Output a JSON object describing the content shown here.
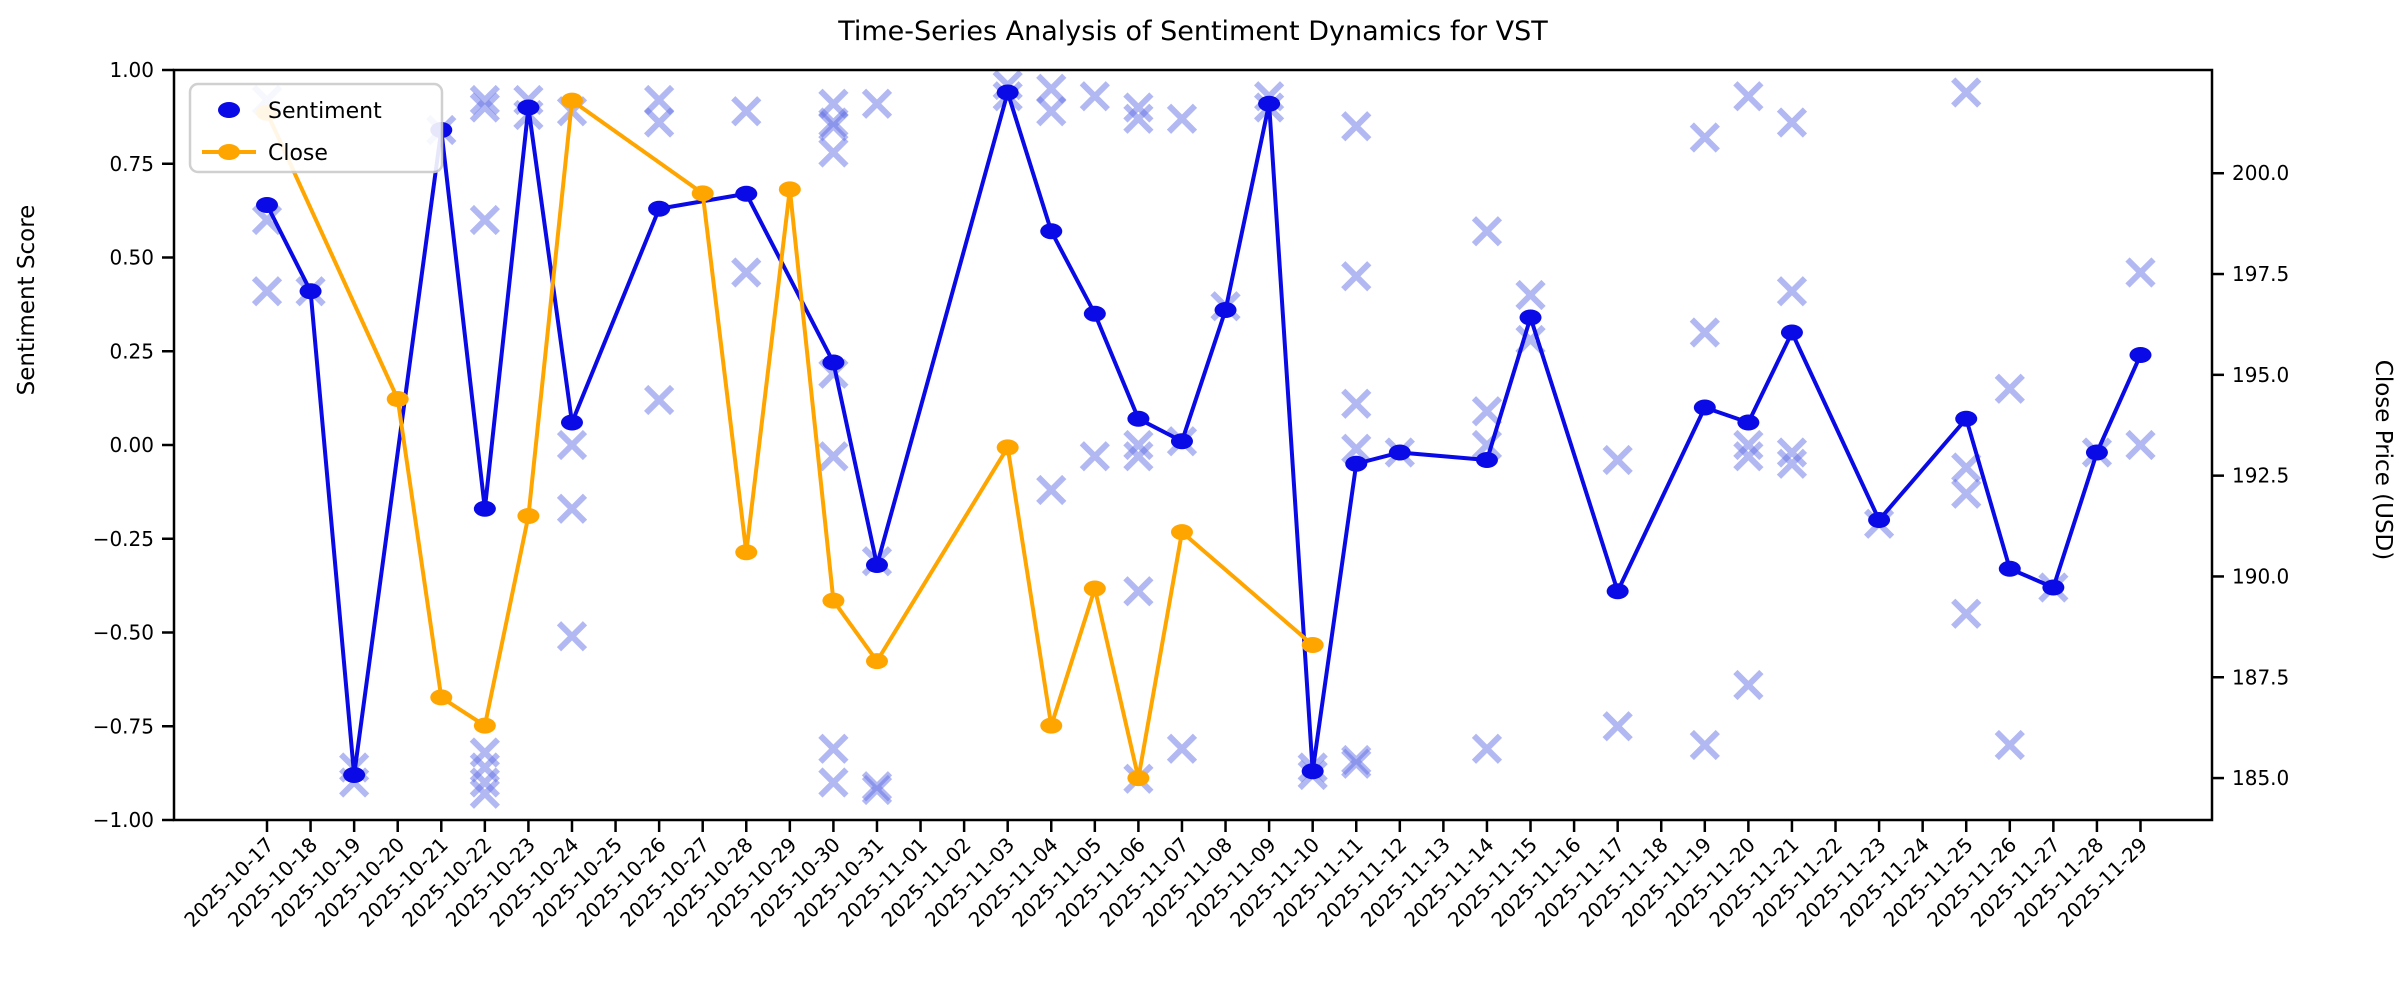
{
  "chart_data": {
    "type": "line",
    "title": "Time-Series Analysis of Sentiment Dynamics for VST",
    "ylabel_left": "Sentiment Score",
    "ylabel_right": "Close Price (USD)",
    "xlabel": "",
    "grid": false,
    "legend_position": "upper-left",
    "legend": [
      {
        "label": "Sentiment",
        "marker": "dot",
        "color": "#0a0ae6"
      },
      {
        "label": "Close",
        "marker": "line-dot",
        "color": "#ffa500"
      }
    ],
    "colors": {
      "sentiment_line": "#0a0ae6",
      "close_line": "#ffa500",
      "scatter_marks": "#6673e6",
      "spine": "#000000",
      "legend_border": "#cccccc"
    },
    "ylim_left": [
      -1.0,
      1.0
    ],
    "yticks_left": [
      "1.00",
      "0.75",
      "0.50",
      "0.25",
      "0.00",
      "−0.25",
      "−0.50",
      "−0.75",
      "−1.00"
    ],
    "yticks_left_values": [
      1.0,
      0.75,
      0.5,
      0.25,
      0.0,
      -0.25,
      -0.5,
      -0.75,
      -1.0
    ],
    "ylim_right": [
      183.96,
      202.56
    ],
    "yticks_right": [
      "200.0",
      "197.5",
      "195.0",
      "192.5",
      "190.0",
      "187.5",
      "185.0"
    ],
    "yticks_right_values": [
      200.0,
      197.5,
      195.0,
      192.5,
      190.0,
      187.5,
      185.0
    ],
    "categories": [
      "2025-10-17",
      "2025-10-18",
      "2025-10-19",
      "2025-10-20",
      "2025-10-21",
      "2025-10-22",
      "2025-10-23",
      "2025-10-24",
      "2025-10-25",
      "2025-10-26",
      "2025-10-27",
      "2025-10-28",
      "2025-10-29",
      "2025-10-30",
      "2025-10-31",
      "2025-11-01",
      "2025-11-02",
      "2025-11-03",
      "2025-11-04",
      "2025-11-05",
      "2025-11-06",
      "2025-11-07",
      "2025-11-08",
      "2025-11-09",
      "2025-11-10",
      "2025-11-11",
      "2025-11-12",
      "2025-11-13",
      "2025-11-14",
      "2025-11-15",
      "2025-11-16",
      "2025-11-17",
      "2025-11-18",
      "2025-11-19",
      "2025-11-20",
      "2025-11-21",
      "2025-11-22",
      "2025-11-23",
      "2025-11-24",
      "2025-11-25",
      "2025-11-26",
      "2025-11-27",
      "2025-11-28",
      "2025-11-29"
    ],
    "series": [
      {
        "name": "Sentiment",
        "axis": "left",
        "points": [
          {
            "x": "2025-10-17",
            "y": 0.64
          },
          {
            "x": "2025-10-18",
            "y": 0.41
          },
          {
            "x": "2025-10-19",
            "y": -0.88
          },
          {
            "x": "2025-10-21",
            "y": 0.84
          },
          {
            "x": "2025-10-22",
            "y": -0.17
          },
          {
            "x": "2025-10-23",
            "y": 0.9
          },
          {
            "x": "2025-10-24",
            "y": 0.06
          },
          {
            "x": "2025-10-26",
            "y": 0.63
          },
          {
            "x": "2025-10-28",
            "y": 0.67
          },
          {
            "x": "2025-10-30",
            "y": 0.22
          },
          {
            "x": "2025-10-31",
            "y": -0.32
          },
          {
            "x": "2025-11-03",
            "y": 0.94
          },
          {
            "x": "2025-11-04",
            "y": 0.57
          },
          {
            "x": "2025-11-05",
            "y": 0.35
          },
          {
            "x": "2025-11-06",
            "y": 0.07
          },
          {
            "x": "2025-11-07",
            "y": 0.01
          },
          {
            "x": "2025-11-08",
            "y": 0.36
          },
          {
            "x": "2025-11-09",
            "y": 0.91
          },
          {
            "x": "2025-11-10",
            "y": -0.87
          },
          {
            "x": "2025-11-11",
            "y": -0.05
          },
          {
            "x": "2025-11-12",
            "y": -0.02
          },
          {
            "x": "2025-11-14",
            "y": -0.04
          },
          {
            "x": "2025-11-15",
            "y": 0.34
          },
          {
            "x": "2025-11-17",
            "y": -0.39
          },
          {
            "x": "2025-11-19",
            "y": 0.1
          },
          {
            "x": "2025-11-20",
            "y": 0.06
          },
          {
            "x": "2025-11-21",
            "y": 0.3
          },
          {
            "x": "2025-11-23",
            "y": -0.2
          },
          {
            "x": "2025-11-25",
            "y": 0.07
          },
          {
            "x": "2025-11-26",
            "y": -0.33
          },
          {
            "x": "2025-11-27",
            "y": -0.38
          },
          {
            "x": "2025-11-28",
            "y": -0.02
          },
          {
            "x": "2025-11-29",
            "y": 0.24
          }
        ]
      },
      {
        "name": "Close",
        "axis": "right",
        "points": [
          {
            "x": "2025-10-17",
            "y": 201.5
          },
          {
            "x": "2025-10-20",
            "y": 194.4
          },
          {
            "x": "2025-10-21",
            "y": 187.0
          },
          {
            "x": "2025-10-22",
            "y": 186.3
          },
          {
            "x": "2025-10-23",
            "y": 191.5
          },
          {
            "x": "2025-10-24",
            "y": 201.8
          },
          {
            "x": "2025-10-27",
            "y": 199.5
          },
          {
            "x": "2025-10-28",
            "y": 190.6
          },
          {
            "x": "2025-10-29",
            "y": 199.6
          },
          {
            "x": "2025-10-30",
            "y": 189.4
          },
          {
            "x": "2025-10-31",
            "y": 187.9
          },
          {
            "x": "2025-11-03",
            "y": 193.2
          },
          {
            "x": "2025-11-04",
            "y": 186.3
          },
          {
            "x": "2025-11-05",
            "y": 189.7
          },
          {
            "x": "2025-11-06",
            "y": 185.0
          },
          {
            "x": "2025-11-07",
            "y": 191.1
          },
          {
            "x": "2025-11-10",
            "y": 188.3
          }
        ]
      }
    ],
    "scatter": {
      "name": "individual-sentiment-marks",
      "axis": "left",
      "marker": "x",
      "points": [
        {
          "x": "2025-10-17",
          "y": 0.92
        },
        {
          "x": "2025-10-17",
          "y": 0.6
        },
        {
          "x": "2025-10-17",
          "y": 0.41
        },
        {
          "x": "2025-10-18",
          "y": 0.41
        },
        {
          "x": "2025-10-19",
          "y": -0.86
        },
        {
          "x": "2025-10-19",
          "y": -0.9
        },
        {
          "x": "2025-10-21",
          "y": 0.84
        },
        {
          "x": "2025-10-22",
          "y": 0.92
        },
        {
          "x": "2025-10-22",
          "y": 0.9
        },
        {
          "x": "2025-10-22",
          "y": 0.6
        },
        {
          "x": "2025-10-22",
          "y": -0.82
        },
        {
          "x": "2025-10-22",
          "y": -0.86
        },
        {
          "x": "2025-10-22",
          "y": -0.9
        },
        {
          "x": "2025-10-22",
          "y": -0.93
        },
        {
          "x": "2025-10-23",
          "y": 0.92
        },
        {
          "x": "2025-10-23",
          "y": 0.88
        },
        {
          "x": "2025-10-24",
          "y": 0.89
        },
        {
          "x": "2025-10-24",
          "y": 0.0
        },
        {
          "x": "2025-10-24",
          "y": -0.17
        },
        {
          "x": "2025-10-24",
          "y": -0.51
        },
        {
          "x": "2025-10-26",
          "y": 0.92
        },
        {
          "x": "2025-10-26",
          "y": 0.86
        },
        {
          "x": "2025-10-26",
          "y": 0.12
        },
        {
          "x": "2025-10-28",
          "y": 0.89
        },
        {
          "x": "2025-10-28",
          "y": 0.46
        },
        {
          "x": "2025-10-30",
          "y": 0.91
        },
        {
          "x": "2025-10-30",
          "y": 0.86
        },
        {
          "x": "2025-10-30",
          "y": 0.85
        },
        {
          "x": "2025-10-30",
          "y": 0.78
        },
        {
          "x": "2025-10-30",
          "y": 0.19
        },
        {
          "x": "2025-10-30",
          "y": -0.03
        },
        {
          "x": "2025-10-30",
          "y": -0.81
        },
        {
          "x": "2025-10-30",
          "y": -0.9
        },
        {
          "x": "2025-10-31",
          "y": 0.91
        },
        {
          "x": "2025-10-31",
          "y": -0.31
        },
        {
          "x": "2025-10-31",
          "y": -0.91
        },
        {
          "x": "2025-10-31",
          "y": -0.92
        },
        {
          "x": "2025-11-03",
          "y": 0.96
        },
        {
          "x": "2025-11-03",
          "y": 0.93
        },
        {
          "x": "2025-11-04",
          "y": 0.95
        },
        {
          "x": "2025-11-04",
          "y": 0.89
        },
        {
          "x": "2025-11-04",
          "y": -0.12
        },
        {
          "x": "2025-11-05",
          "y": 0.93
        },
        {
          "x": "2025-11-05",
          "y": -0.03
        },
        {
          "x": "2025-11-06",
          "y": 0.9
        },
        {
          "x": "2025-11-06",
          "y": 0.87
        },
        {
          "x": "2025-11-06",
          "y": 0.0
        },
        {
          "x": "2025-11-06",
          "y": -0.03
        },
        {
          "x": "2025-11-06",
          "y": -0.39
        },
        {
          "x": "2025-11-06",
          "y": -0.89
        },
        {
          "x": "2025-11-07",
          "y": 0.87
        },
        {
          "x": "2025-11-07",
          "y": 0.01
        },
        {
          "x": "2025-11-07",
          "y": -0.81
        },
        {
          "x": "2025-11-08",
          "y": 0.37
        },
        {
          "x": "2025-11-09",
          "y": 0.93
        },
        {
          "x": "2025-11-09",
          "y": 0.9
        },
        {
          "x": "2025-11-10",
          "y": -0.86
        },
        {
          "x": "2025-11-10",
          "y": -0.88
        },
        {
          "x": "2025-11-11",
          "y": 0.85
        },
        {
          "x": "2025-11-11",
          "y": 0.45
        },
        {
          "x": "2025-11-11",
          "y": 0.11
        },
        {
          "x": "2025-11-11",
          "y": -0.01
        },
        {
          "x": "2025-11-11",
          "y": -0.84
        },
        {
          "x": "2025-11-11",
          "y": -0.85
        },
        {
          "x": "2025-11-12",
          "y": -0.02
        },
        {
          "x": "2025-11-14",
          "y": 0.57
        },
        {
          "x": "2025-11-14",
          "y": 0.09
        },
        {
          "x": "2025-11-14",
          "y": 0.0
        },
        {
          "x": "2025-11-14",
          "y": -0.81
        },
        {
          "x": "2025-11-15",
          "y": 0.4
        },
        {
          "x": "2025-11-15",
          "y": 0.28
        },
        {
          "x": "2025-11-17",
          "y": -0.04
        },
        {
          "x": "2025-11-17",
          "y": -0.75
        },
        {
          "x": "2025-11-19",
          "y": 0.82
        },
        {
          "x": "2025-11-19",
          "y": 0.3
        },
        {
          "x": "2025-11-19",
          "y": -0.8
        },
        {
          "x": "2025-11-20",
          "y": 0.93
        },
        {
          "x": "2025-11-20",
          "y": 0.0
        },
        {
          "x": "2025-11-20",
          "y": -0.03
        },
        {
          "x": "2025-11-20",
          "y": -0.64
        },
        {
          "x": "2025-11-21",
          "y": 0.86
        },
        {
          "x": "2025-11-21",
          "y": 0.41
        },
        {
          "x": "2025-11-21",
          "y": -0.02
        },
        {
          "x": "2025-11-21",
          "y": -0.05
        },
        {
          "x": "2025-11-23",
          "y": -0.21
        },
        {
          "x": "2025-11-25",
          "y": 0.94
        },
        {
          "x": "2025-11-25",
          "y": -0.06
        },
        {
          "x": "2025-11-25",
          "y": -0.13
        },
        {
          "x": "2025-11-25",
          "y": -0.45
        },
        {
          "x": "2025-11-26",
          "y": 0.15
        },
        {
          "x": "2025-11-26",
          "y": -0.8
        },
        {
          "x": "2025-11-27",
          "y": -0.38
        },
        {
          "x": "2025-11-28",
          "y": -0.02
        },
        {
          "x": "2025-11-29",
          "y": 0.46
        },
        {
          "x": "2025-11-29",
          "y": 0.0
        }
      ]
    }
  }
}
